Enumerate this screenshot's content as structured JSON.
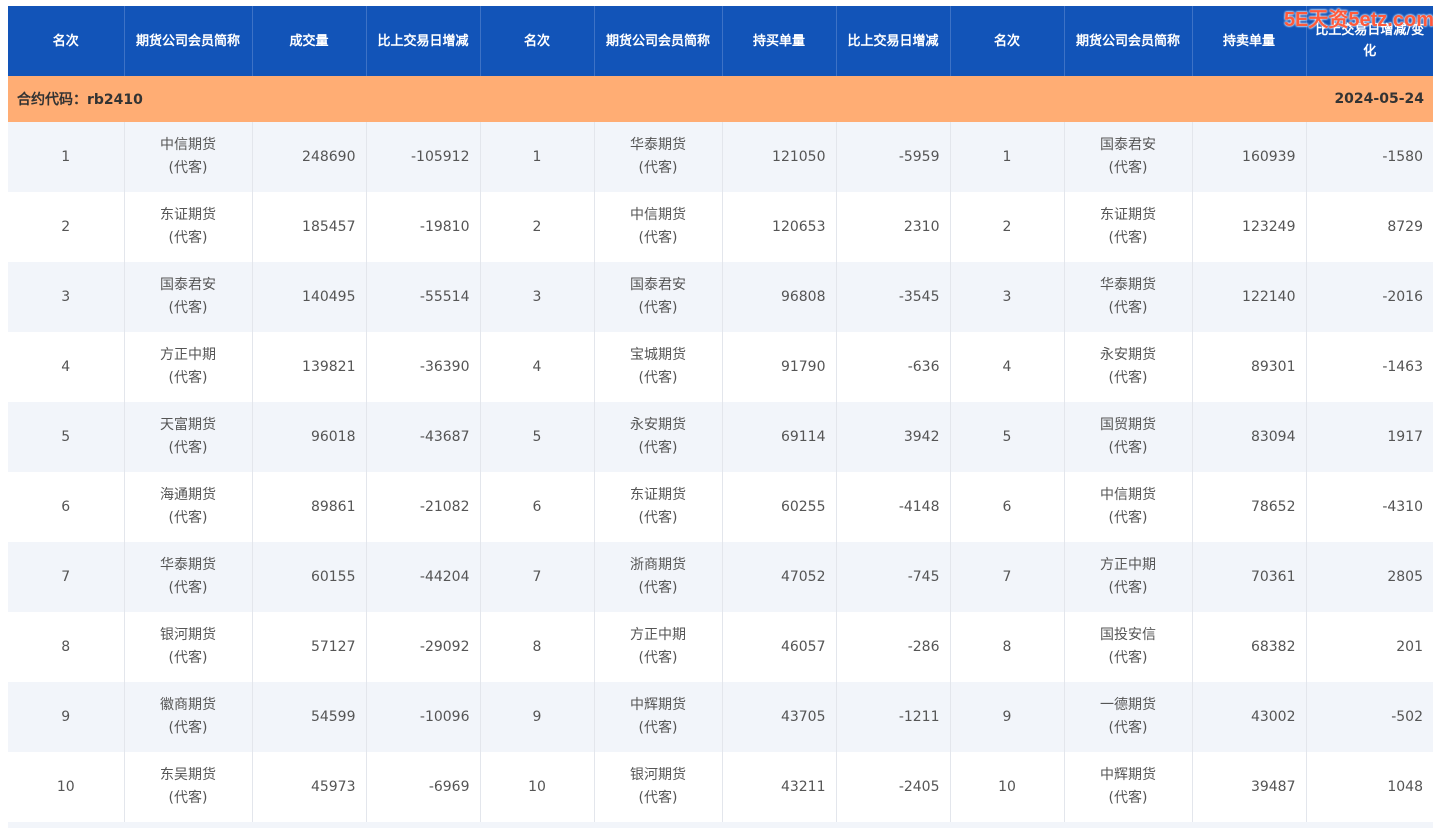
{
  "watermark": "5E天资5etz.com",
  "headers": [
    "名次",
    "期货公司会员简称",
    "成交量",
    "比上交易日增减",
    "名次",
    "期货公司会员简称",
    "持买单量",
    "比上交易日增减",
    "名次",
    "期货公司会员简称",
    "持卖单量",
    "比上交易日增减/变化"
  ],
  "contract": {
    "label": "合约代码：rb2410",
    "date": "2024-05-24"
  },
  "rows": [
    {
      "r1": "1",
      "n1": "中信期货",
      "s1": "(代客)",
      "v1": "248690",
      "c1": "-105912",
      "r2": "1",
      "n2": "华泰期货",
      "s2": "(代客)",
      "v2": "121050",
      "c2": "-5959",
      "r3": "1",
      "n3": "国泰君安",
      "s3": "(代客)",
      "v3": "160939",
      "c3": "-1580"
    },
    {
      "r1": "2",
      "n1": "东证期货",
      "s1": "(代客)",
      "v1": "185457",
      "c1": "-19810",
      "r2": "2",
      "n2": "中信期货",
      "s2": "(代客)",
      "v2": "120653",
      "c2": "2310",
      "r3": "2",
      "n3": "东证期货",
      "s3": "(代客)",
      "v3": "123249",
      "c3": "8729"
    },
    {
      "r1": "3",
      "n1": "国泰君安",
      "s1": "(代客)",
      "v1": "140495",
      "c1": "-55514",
      "r2": "3",
      "n2": "国泰君安",
      "s2": "(代客)",
      "v2": "96808",
      "c2": "-3545",
      "r3": "3",
      "n3": "华泰期货",
      "s3": "(代客)",
      "v3": "122140",
      "c3": "-2016"
    },
    {
      "r1": "4",
      "n1": "方正中期",
      "s1": "(代客)",
      "v1": "139821",
      "c1": "-36390",
      "r2": "4",
      "n2": "宝城期货",
      "s2": "(代客)",
      "v2": "91790",
      "c2": "-636",
      "r3": "4",
      "n3": "永安期货",
      "s3": "(代客)",
      "v3": "89301",
      "c3": "-1463"
    },
    {
      "r1": "5",
      "n1": "天富期货",
      "s1": "(代客)",
      "v1": "96018",
      "c1": "-43687",
      "r2": "5",
      "n2": "永安期货",
      "s2": "(代客)",
      "v2": "69114",
      "c2": "3942",
      "r3": "5",
      "n3": "国贸期货",
      "s3": "(代客)",
      "v3": "83094",
      "c3": "1917"
    },
    {
      "r1": "6",
      "n1": "海通期货",
      "s1": "(代客)",
      "v1": "89861",
      "c1": "-21082",
      "r2": "6",
      "n2": "东证期货",
      "s2": "(代客)",
      "v2": "60255",
      "c2": "-4148",
      "r3": "6",
      "n3": "中信期货",
      "s3": "(代客)",
      "v3": "78652",
      "c3": "-4310"
    },
    {
      "r1": "7",
      "n1": "华泰期货",
      "s1": "(代客)",
      "v1": "60155",
      "c1": "-44204",
      "r2": "7",
      "n2": "浙商期货",
      "s2": "(代客)",
      "v2": "47052",
      "c2": "-745",
      "r3": "7",
      "n3": "方正中期",
      "s3": "(代客)",
      "v3": "70361",
      "c3": "2805"
    },
    {
      "r1": "8",
      "n1": "银河期货",
      "s1": "(代客)",
      "v1": "57127",
      "c1": "-29092",
      "r2": "8",
      "n2": "方正中期",
      "s2": "(代客)",
      "v2": "46057",
      "c2": "-286",
      "r3": "8",
      "n3": "国投安信",
      "s3": "(代客)",
      "v3": "68382",
      "c3": "201"
    },
    {
      "r1": "9",
      "n1": "徽商期货",
      "s1": "(代客)",
      "v1": "54599",
      "c1": "-10096",
      "r2": "9",
      "n2": "中辉期货",
      "s2": "(代客)",
      "v2": "43705",
      "c2": "-1211",
      "r3": "9",
      "n3": "一德期货",
      "s3": "(代客)",
      "v3": "43002",
      "c3": "-502"
    },
    {
      "r1": "10",
      "n1": "东吴期货",
      "s1": "(代客)",
      "v1": "45973",
      "c1": "-6969",
      "r2": "10",
      "n2": "银河期货",
      "s2": "(代客)",
      "v2": "43211",
      "c2": "-2405",
      "r3": "10",
      "n3": "中辉期货",
      "s3": "(代客)",
      "v3": "39487",
      "c3": "1048"
    }
  ]
}
